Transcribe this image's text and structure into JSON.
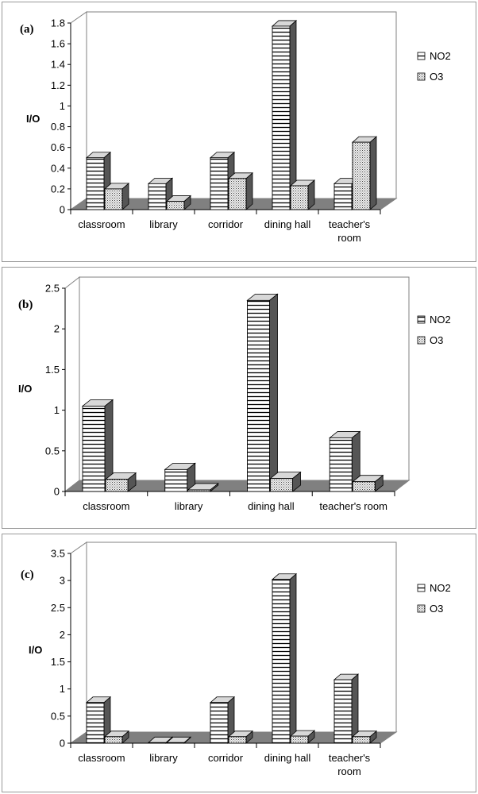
{
  "colors": {
    "back_wall": "#ffffff",
    "floor": "#808080",
    "axis": "#000000",
    "border": "#999999",
    "bar_face": "#ffffff",
    "bar_top": "#d8d8d8",
    "bar_side": "#555555"
  },
  "chart_data": [
    {
      "type": "bar",
      "panel_label": "(a)",
      "ylabel": "I/O",
      "xlabel": "",
      "ylim": [
        0,
        1.8
      ],
      "yticks": [
        "0",
        "0.2",
        "0.4",
        "0.6",
        "0.8",
        "1",
        "1.2",
        "1.4",
        "1.6",
        "1.8"
      ],
      "categories": [
        [
          "classroom"
        ],
        [
          "library"
        ],
        [
          "corridor"
        ],
        [
          "dining hall"
        ],
        [
          "teacher's",
          "room"
        ]
      ],
      "series": [
        {
          "name": "NO2",
          "pattern": "hstripe",
          "values": [
            0.5,
            0.25,
            0.5,
            1.77,
            0.25
          ]
        },
        {
          "name": "O3",
          "pattern": "dots",
          "values": [
            0.2,
            0.08,
            0.3,
            0.23,
            0.65
          ]
        }
      ],
      "grid": false,
      "legend_position": "right"
    },
    {
      "type": "bar",
      "panel_label": "(b)",
      "ylabel": "I/O",
      "xlabel": "",
      "ylim": [
        0,
        2.5
      ],
      "yticks": [
        "0",
        "0.5",
        "1",
        "1.5",
        "2",
        "2.5"
      ],
      "categories": [
        [
          "classroom"
        ],
        [
          "library"
        ],
        [
          "dining hall"
        ],
        [
          "teacher's room"
        ]
      ],
      "series": [
        {
          "name": "NO2",
          "pattern": "hstripe",
          "values": [
            1.05,
            0.27,
            2.35,
            0.66
          ]
        },
        {
          "name": "O3",
          "pattern": "dots",
          "values": [
            0.15,
            0.02,
            0.16,
            0.12
          ]
        }
      ],
      "grid": false,
      "legend_position": "right"
    },
    {
      "type": "bar",
      "panel_label": "(c)",
      "ylabel": "I/O",
      "xlabel": "",
      "ylim": [
        0,
        3.5
      ],
      "yticks": [
        "0",
        "0.5",
        "1",
        "1.5",
        "2",
        "2.5",
        "3",
        "3.5"
      ],
      "categories": [
        [
          "classroom"
        ],
        [
          "library"
        ],
        [
          "corridor"
        ],
        [
          "dining hall"
        ],
        [
          "teacher's",
          "room"
        ]
      ],
      "series": [
        {
          "name": "NO2",
          "pattern": "hstripe",
          "values": [
            0.75,
            0.01,
            0.75,
            3.02,
            1.17
          ]
        },
        {
          "name": "O3",
          "pattern": "dots",
          "values": [
            0.12,
            0.01,
            0.12,
            0.13,
            0.12
          ]
        }
      ],
      "grid": false,
      "legend_position": "right"
    }
  ]
}
